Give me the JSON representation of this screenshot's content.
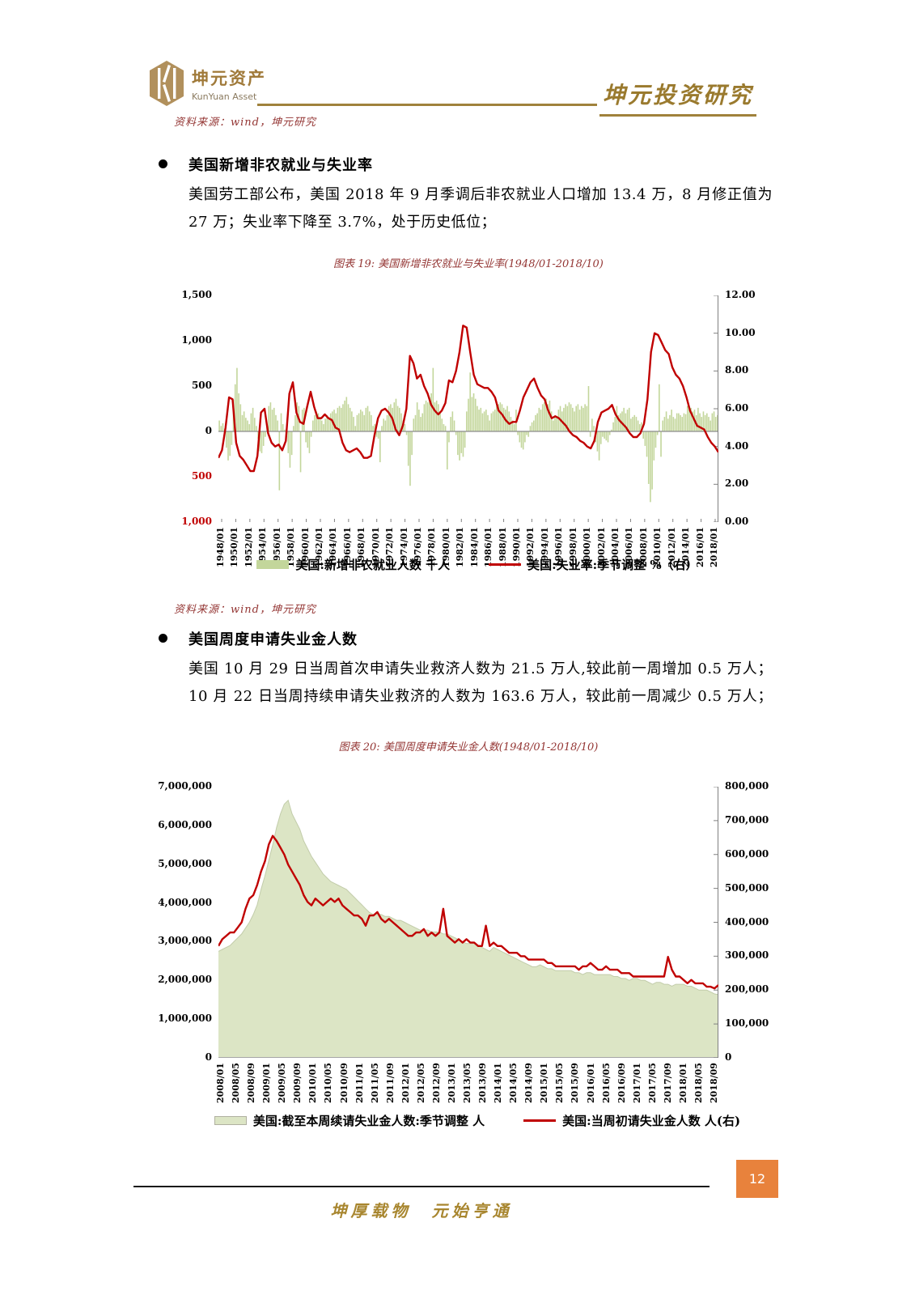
{
  "header": {
    "logo_cn": "坤元资产",
    "logo_en": "KunYuan Asset",
    "title": "坤元投资研究"
  },
  "source_note": "资料来源：wind，坤元研究",
  "sections": [
    {
      "heading": "美国新增非农就业与失业率",
      "body_lines": [
        "美国劳工部公布，美国 2018 年 9 月季调后非农就业人口增加 13.4 万，8 月修正值为",
        "27 万；失业率下降至 3.7%，处于历史低位；"
      ]
    },
    {
      "heading": "美国周度申请失业金人数",
      "body_lines": [
        "美国 10 月 29 日当周首次申请失业救济人数为 21.5 万人,较此前一周增加 0.5 万人；",
        "10 月 22 日当周持续申请失业救济的人数为 163.6 万人，较此前一周减少 0.5 万人；"
      ]
    }
  ],
  "footer": {
    "motto": "坤厚载物　元始亨通",
    "page_number": "12"
  },
  "colors": {
    "bar_green": "#c3d69b",
    "area_green": "#dce5c5",
    "line_red": "#c00000",
    "axis_gray": "#808080",
    "title_red": "#943634",
    "gold": "#a0823c",
    "page_box_orange": "#e8823c",
    "negative_tick_red": "#c00000"
  },
  "chart_data": [
    {
      "type": "bar",
      "title": "图表 19: 美国新增非农就业与失业率(1948/01-2018/10)",
      "legend": [
        "美国:新增非农就业人数 千人",
        "美国:失业率:季节调整 %（右）"
      ],
      "legend_position": "bottom",
      "grid": false,
      "left_axis": {
        "ticks": [
          "1,500",
          "1,000",
          "500",
          "0",
          "500",
          "1,000"
        ],
        "range": [
          -1000,
          1500
        ],
        "red_from_index": 4
      },
      "right_axis": {
        "ticks": [
          "12.00",
          "10.00",
          "8.00",
          "6.00",
          "4.00",
          "2.00",
          "0.00"
        ],
        "range": [
          0,
          12
        ]
      },
      "x_ticks": [
        "1948/01",
        "1950/01",
        "1952/01",
        "1954/01",
        "1956/01",
        "1958/01",
        "1960/01",
        "1962/01",
        "1964/01",
        "1966/01",
        "1968/01",
        "1970/01",
        "1972/01",
        "1974/01",
        "1976/01",
        "1978/01",
        "1980/01",
        "1982/01",
        "1984/01",
        "1986/01",
        "1988/01",
        "1990/01",
        "1992/01",
        "1994/01",
        "1996/01",
        "1998/01",
        "2000/01",
        "2002/01",
        "2004/01",
        "2006/01",
        "2008/01",
        "2010/01",
        "2012/01",
        "2014/01",
        "2016/01",
        "2018/01"
      ],
      "series": [
        {
          "name": "美国:新增非农就业人数 千人",
          "type": "bar",
          "axis": "left",
          "color": "#c3d69b",
          "sampling": "quarterly 1948Q1-2018Q3, thousands of persons",
          "values": [
            120,
            60,
            90,
            30,
            -180,
            -320,
            -270,
            -150,
            350,
            520,
            700,
            420,
            300,
            180,
            220,
            150,
            120,
            80,
            200,
            260,
            150,
            60,
            -80,
            -220,
            -240,
            -160,
            -60,
            80,
            280,
            320,
            240,
            260,
            180,
            120,
            -650,
            200,
            80,
            20,
            -60,
            -240,
            -400,
            -260,
            60,
            180,
            320,
            280,
            -450,
            240,
            260,
            -120,
            -180,
            -240,
            -60,
            120,
            180,
            220,
            200,
            160,
            120,
            80,
            140,
            180,
            160,
            200,
            220,
            240,
            200,
            260,
            280,
            260,
            300,
            340,
            380,
            300,
            260,
            220,
            160,
            60,
            180,
            200,
            240,
            220,
            180,
            260,
            280,
            220,
            180,
            60,
            80,
            -60,
            -80,
            -340,
            60,
            140,
            120,
            180,
            280,
            300,
            260,
            320,
            360,
            280,
            260,
            200,
            120,
            80,
            -40,
            -380,
            -600,
            -260,
            140,
            180,
            320,
            240,
            160,
            200,
            300,
            340,
            320,
            380,
            420,
            700,
            320,
            340,
            300,
            200,
            140,
            80,
            60,
            -420,
            -120,
            160,
            220,
            120,
            -40,
            -260,
            -320,
            -240,
            -280,
            -180,
            220,
            360,
            650,
            380,
            420,
            360,
            280,
            240,
            260,
            200,
            220,
            240,
            180,
            120,
            200,
            220,
            240,
            280,
            300,
            320,
            300,
            260,
            240,
            280,
            220,
            160,
            120,
            80,
            240,
            -40,
            -120,
            -180,
            -200,
            -120,
            -40,
            -60,
            60,
            100,
            120,
            180,
            200,
            260,
            240,
            300,
            320,
            360,
            300,
            340,
            220,
            120,
            180,
            160,
            240,
            280,
            220,
            260,
            300,
            280,
            320,
            300,
            260,
            220,
            280,
            300,
            240,
            280,
            260,
            300,
            280,
            500,
            -60,
            140,
            60,
            -120,
            -220,
            -320,
            -140,
            -60,
            -80,
            -100,
            -120,
            -40,
            20,
            100,
            160,
            280,
            180,
            200,
            220,
            260,
            200,
            240,
            260,
            140,
            160,
            180,
            160,
            120,
            80,
            100,
            -80,
            -160,
            -280,
            -580,
            -780,
            -640,
            -320,
            -180,
            -40,
            520,
            -280,
            120,
            160,
            220,
            140,
            180,
            240,
            160,
            140,
            200,
            200,
            180,
            160,
            200,
            190,
            280,
            240,
            260,
            220,
            240,
            180,
            260,
            200,
            160,
            220,
            180,
            200,
            160,
            120,
            200,
            220,
            160,
            180
          ]
        },
        {
          "name": "美国:失业率:季节调整 %（右）",
          "type": "line",
          "axis": "right",
          "color": "#c00000",
          "sampling": "semiannual 1948-2018, percent",
          "values": [
            3.4,
            3.8,
            5.0,
            6.6,
            6.5,
            4.2,
            3.5,
            3.3,
            3.0,
            2.7,
            2.7,
            3.5,
            5.8,
            6.0,
            4.7,
            4.2,
            4.0,
            4.1,
            3.8,
            4.3,
            6.8,
            7.4,
            5.8,
            5.3,
            5.2,
            6.1,
            6.9,
            6.1,
            5.5,
            5.5,
            5.7,
            5.5,
            5.4,
            5.0,
            4.9,
            4.2,
            3.8,
            3.7,
            3.8,
            3.9,
            3.7,
            3.4,
            3.4,
            3.5,
            4.6,
            5.5,
            5.9,
            6.0,
            5.8,
            5.5,
            4.9,
            4.6,
            5.1,
            6.0,
            8.8,
            8.4,
            7.6,
            7.8,
            7.2,
            6.8,
            6.2,
            5.9,
            5.7,
            5.9,
            6.3,
            7.5,
            7.4,
            8.0,
            9.0,
            10.4,
            10.3,
            9.0,
            7.8,
            7.3,
            7.2,
            7.1,
            7.1,
            6.9,
            6.6,
            5.9,
            5.7,
            5.4,
            5.2,
            5.3,
            5.3,
            5.9,
            6.6,
            7.0,
            7.4,
            7.6,
            7.1,
            6.7,
            6.5,
            5.9,
            5.5,
            5.6,
            5.5,
            5.3,
            5.1,
            4.8,
            4.6,
            4.5,
            4.3,
            4.2,
            4.0,
            3.9,
            4.3,
            5.3,
            5.8,
            5.9,
            6.0,
            6.2,
            5.7,
            5.4,
            5.2,
            5.0,
            4.7,
            4.5,
            4.5,
            4.7,
            5.2,
            6.5,
            9.0,
            10.0,
            9.9,
            9.5,
            9.1,
            8.9,
            8.2,
            7.8,
            7.6,
            7.2,
            6.6,
            5.9,
            5.5,
            5.1,
            5.0,
            4.9,
            4.5,
            4.2,
            4.0,
            3.7
          ]
        }
      ]
    },
    {
      "type": "area",
      "title": "图表 20: 美国周度申请失业金人数(1948/01-2018/10)",
      "legend": [
        "美国:截至本周续请失业金人数:季节调整 人",
        "美国:当周初请失业金人数 人(右)"
      ],
      "legend_position": "bottom",
      "grid": false,
      "left_axis": {
        "ticks": [
          "7,000,000",
          "6,000,000",
          "5,000,000",
          "4,000,000",
          "3,000,000",
          "2,000,000",
          "1,000,000",
          "0"
        ],
        "range": [
          0,
          7000000
        ]
      },
      "right_axis": {
        "ticks": [
          "800,000",
          "700,000",
          "600,000",
          "500,000",
          "400,000",
          "300,000",
          "200,000",
          "100,000",
          "0"
        ],
        "range": [
          0,
          800000
        ]
      },
      "x_ticks": [
        "2008/01",
        "2008/05",
        "2008/09",
        "2009/01",
        "2009/05",
        "2009/09",
        "2010/01",
        "2010/05",
        "2010/09",
        "2011/01",
        "2011/05",
        "2011/09",
        "2012/01",
        "2012/05",
        "2012/09",
        "2013/01",
        "2013/05",
        "2013/09",
        "2014/01",
        "2014/05",
        "2014/09",
        "2015/01",
        "2015/05",
        "2015/09",
        "2016/01",
        "2016/05",
        "2016/09",
        "2017/01",
        "2017/05",
        "2017/09",
        "2018/01",
        "2018/05",
        "2018/09"
      ],
      "series": [
        {
          "name": "美国:截至本周续请失业金人数:季节调整 人",
          "type": "area",
          "axis": "left",
          "color": "#dce5c5",
          "edge_color": "#c2ccaa",
          "sampling": "monthly 2008/01-2018/10, persons (stored in thousands)",
          "unit_scale": 1000,
          "values": [
            2750,
            2800,
            2850,
            2900,
            3000,
            3100,
            3200,
            3350,
            3500,
            3700,
            3950,
            4350,
            4700,
            5100,
            5500,
            5950,
            6300,
            6550,
            6650,
            6300,
            6100,
            5900,
            5600,
            5400,
            5200,
            5050,
            4900,
            4750,
            4650,
            4550,
            4500,
            4450,
            4400,
            4350,
            4250,
            4150,
            4050,
            3950,
            3850,
            3750,
            3700,
            3700,
            3700,
            3650,
            3650,
            3600,
            3550,
            3550,
            3500,
            3450,
            3400,
            3350,
            3300,
            3300,
            3300,
            3250,
            3250,
            3250,
            3200,
            3200,
            3150,
            3100,
            3050,
            3000,
            2950,
            2950,
            2950,
            2900,
            2850,
            2800,
            2750,
            2850,
            2800,
            2750,
            2700,
            2650,
            2600,
            2550,
            2500,
            2450,
            2400,
            2350,
            2350,
            2400,
            2350,
            2300,
            2300,
            2250,
            2250,
            2250,
            2250,
            2250,
            2200,
            2200,
            2150,
            2200,
            2200,
            2150,
            2150,
            2150,
            2150,
            2150,
            2100,
            2100,
            2050,
            2050,
            2000,
            2050,
            2050,
            2000,
            2000,
            1950,
            1900,
            1950,
            1950,
            1900,
            1900,
            1850,
            1900,
            1900,
            1900,
            1850,
            1850,
            1800,
            1750,
            1750,
            1750,
            1700,
            1650,
            1636
          ]
        },
        {
          "name": "美国:当周初请失业金人数 人(右)",
          "type": "line",
          "axis": "right",
          "color": "#c00000",
          "sampling": "monthly 2008/01-2018/10, persons (stored in thousands)",
          "unit_scale": 1000,
          "values": [
            330,
            350,
            360,
            370,
            370,
            385,
            400,
            440,
            470,
            480,
            510,
            550,
            580,
            630,
            655,
            640,
            620,
            600,
            570,
            550,
            530,
            510,
            480,
            460,
            450,
            470,
            460,
            450,
            460,
            470,
            460,
            470,
            450,
            440,
            430,
            420,
            420,
            410,
            390,
            420,
            420,
            430,
            410,
            400,
            410,
            400,
            390,
            380,
            370,
            360,
            360,
            370,
            370,
            380,
            360,
            370,
            360,
            370,
            440,
            360,
            350,
            340,
            350,
            340,
            350,
            340,
            340,
            330,
            330,
            390,
            330,
            340,
            330,
            330,
            320,
            310,
            310,
            310,
            300,
            300,
            290,
            290,
            290,
            290,
            290,
            280,
            280,
            270,
            270,
            270,
            270,
            270,
            270,
            260,
            270,
            270,
            280,
            270,
            260,
            260,
            270,
            260,
            260,
            260,
            250,
            250,
            250,
            240,
            240,
            240,
            240,
            240,
            240,
            240,
            240,
            240,
            298,
            260,
            240,
            240,
            230,
            220,
            230,
            220,
            220,
            220,
            210,
            210,
            205,
            215
          ]
        }
      ]
    }
  ]
}
